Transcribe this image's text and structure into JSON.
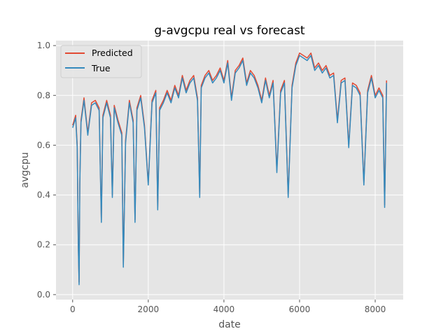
{
  "chart_data": {
    "type": "line",
    "title": "g-avgcpu real vs forecast",
    "xlabel": "date",
    "ylabel": "avgcpu",
    "xlim": [
      -440,
      8740
    ],
    "ylim": [
      -0.02,
      1.02
    ],
    "xticks": [
      0,
      2000,
      4000,
      6000,
      8000
    ],
    "xtick_labels": [
      "0",
      "2000",
      "4000",
      "6000",
      "8000"
    ],
    "yticks": [
      0.0,
      0.2,
      0.4,
      0.6,
      0.8,
      1.0
    ],
    "ytick_labels": [
      "0.0",
      "0.2",
      "0.4",
      "0.6",
      "0.8",
      "1.0"
    ],
    "grid": true,
    "legend_position": "upper-left",
    "colors": {
      "panel": "#e5e5e5",
      "grid": "#ffffff",
      "predicted": "#e24a33",
      "true": "#348abd"
    },
    "x": [
      0,
      80,
      120,
      150,
      170,
      190,
      220,
      300,
      400,
      500,
      600,
      700,
      760,
      800,
      900,
      1000,
      1050,
      1100,
      1200,
      1300,
      1340,
      1400,
      1500,
      1600,
      1650,
      1700,
      1800,
      1900,
      2000,
      2100,
      2200,
      2250,
      2300,
      2400,
      2500,
      2600,
      2700,
      2800,
      2900,
      3000,
      3100,
      3200,
      3300,
      3360,
      3400,
      3500,
      3600,
      3700,
      3800,
      3900,
      4000,
      4100,
      4200,
      4300,
      4400,
      4500,
      4600,
      4700,
      4800,
      4900,
      5000,
      5100,
      5200,
      5300,
      5400,
      5500,
      5600,
      5700,
      5800,
      5900,
      6000,
      6100,
      6200,
      6300,
      6400,
      6500,
      6600,
      6700,
      6800,
      6900,
      7000,
      7100,
      7200,
      7300,
      7400,
      7500,
      7600,
      7700,
      7800,
      7900,
      8000,
      8100,
      8200,
      8250,
      8300
    ],
    "series": [
      {
        "name": "Predicted",
        "values": [
          0.68,
          0.72,
          0.6,
          0.2,
          0.05,
          0.45,
          0.7,
          0.79,
          0.65,
          0.77,
          0.78,
          0.75,
          0.3,
          0.72,
          0.78,
          0.72,
          0.4,
          0.76,
          0.7,
          0.65,
          0.12,
          0.62,
          0.78,
          0.7,
          0.3,
          0.75,
          0.8,
          0.68,
          0.45,
          0.78,
          0.82,
          0.35,
          0.75,
          0.78,
          0.82,
          0.78,
          0.84,
          0.8,
          0.88,
          0.82,
          0.86,
          0.88,
          0.79,
          0.4,
          0.84,
          0.88,
          0.9,
          0.86,
          0.88,
          0.91,
          0.86,
          0.94,
          0.79,
          0.9,
          0.92,
          0.95,
          0.85,
          0.9,
          0.88,
          0.84,
          0.78,
          0.87,
          0.8,
          0.86,
          0.5,
          0.82,
          0.86,
          0.4,
          0.84,
          0.93,
          0.97,
          0.96,
          0.95,
          0.97,
          0.91,
          0.93,
          0.9,
          0.92,
          0.88,
          0.89,
          0.7,
          0.86,
          0.87,
          0.6,
          0.85,
          0.84,
          0.81,
          0.45,
          0.82,
          0.88,
          0.8,
          0.83,
          0.8,
          0.36,
          0.86
        ]
      },
      {
        "name": "True",
        "values": [
          0.67,
          0.71,
          0.59,
          0.19,
          0.04,
          0.44,
          0.69,
          0.78,
          0.64,
          0.76,
          0.77,
          0.74,
          0.29,
          0.71,
          0.77,
          0.71,
          0.39,
          0.75,
          0.69,
          0.64,
          0.11,
          0.61,
          0.77,
          0.69,
          0.29,
          0.74,
          0.79,
          0.67,
          0.44,
          0.77,
          0.81,
          0.34,
          0.74,
          0.77,
          0.81,
          0.77,
          0.83,
          0.79,
          0.87,
          0.81,
          0.85,
          0.87,
          0.78,
          0.39,
          0.83,
          0.87,
          0.89,
          0.85,
          0.87,
          0.9,
          0.85,
          0.93,
          0.78,
          0.89,
          0.91,
          0.94,
          0.84,
          0.89,
          0.87,
          0.83,
          0.77,
          0.86,
          0.79,
          0.85,
          0.49,
          0.81,
          0.85,
          0.39,
          0.83,
          0.92,
          0.96,
          0.95,
          0.94,
          0.96,
          0.9,
          0.92,
          0.89,
          0.91,
          0.87,
          0.88,
          0.69,
          0.85,
          0.86,
          0.59,
          0.84,
          0.83,
          0.8,
          0.44,
          0.81,
          0.87,
          0.79,
          0.82,
          0.79,
          0.35,
          0.85
        ]
      }
    ]
  }
}
